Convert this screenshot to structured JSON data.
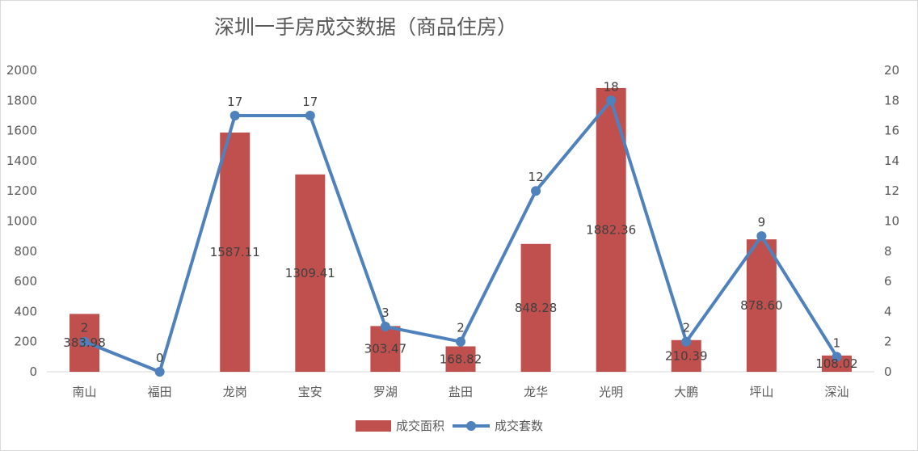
{
  "chart_data": {
    "type": "bar+line",
    "title": "深圳一手房成交数据（商品住房）",
    "categories": [
      "南山",
      "福田",
      "龙岗",
      "宝安",
      "罗湖",
      "盐田",
      "龙华",
      "光明",
      "大鹏",
      "坪山",
      "深汕"
    ],
    "series": [
      {
        "name": "成交面积",
        "type": "bar",
        "axis": "left",
        "color": "#c0504d",
        "values": [
          383.98,
          0,
          1587.11,
          1309.41,
          303.47,
          168.82,
          848.28,
          1882.36,
          210.39,
          878.6,
          108.02
        ],
        "labels": [
          "383.98",
          "",
          "1587.11",
          "1309.41",
          "303.47",
          "168.82",
          "848.28",
          "1882.36",
          "210.39",
          "878.60",
          "108.02"
        ]
      },
      {
        "name": "成交套数",
        "type": "line",
        "axis": "right",
        "color": "#4f81bd",
        "values": [
          2,
          0,
          17,
          17,
          3,
          2,
          12,
          18,
          2,
          9,
          1
        ]
      }
    ],
    "y_left": {
      "min": 0,
      "max": 2000,
      "ticks": [
        0,
        200,
        400,
        600,
        800,
        1000,
        1200,
        1400,
        1600,
        1800,
        2000
      ]
    },
    "y_right": {
      "min": 0,
      "max": 20,
      "ticks": [
        0,
        2,
        4,
        6,
        8,
        10,
        12,
        14,
        16,
        18,
        20
      ]
    },
    "grid": false,
    "legend_position": "bottom"
  }
}
